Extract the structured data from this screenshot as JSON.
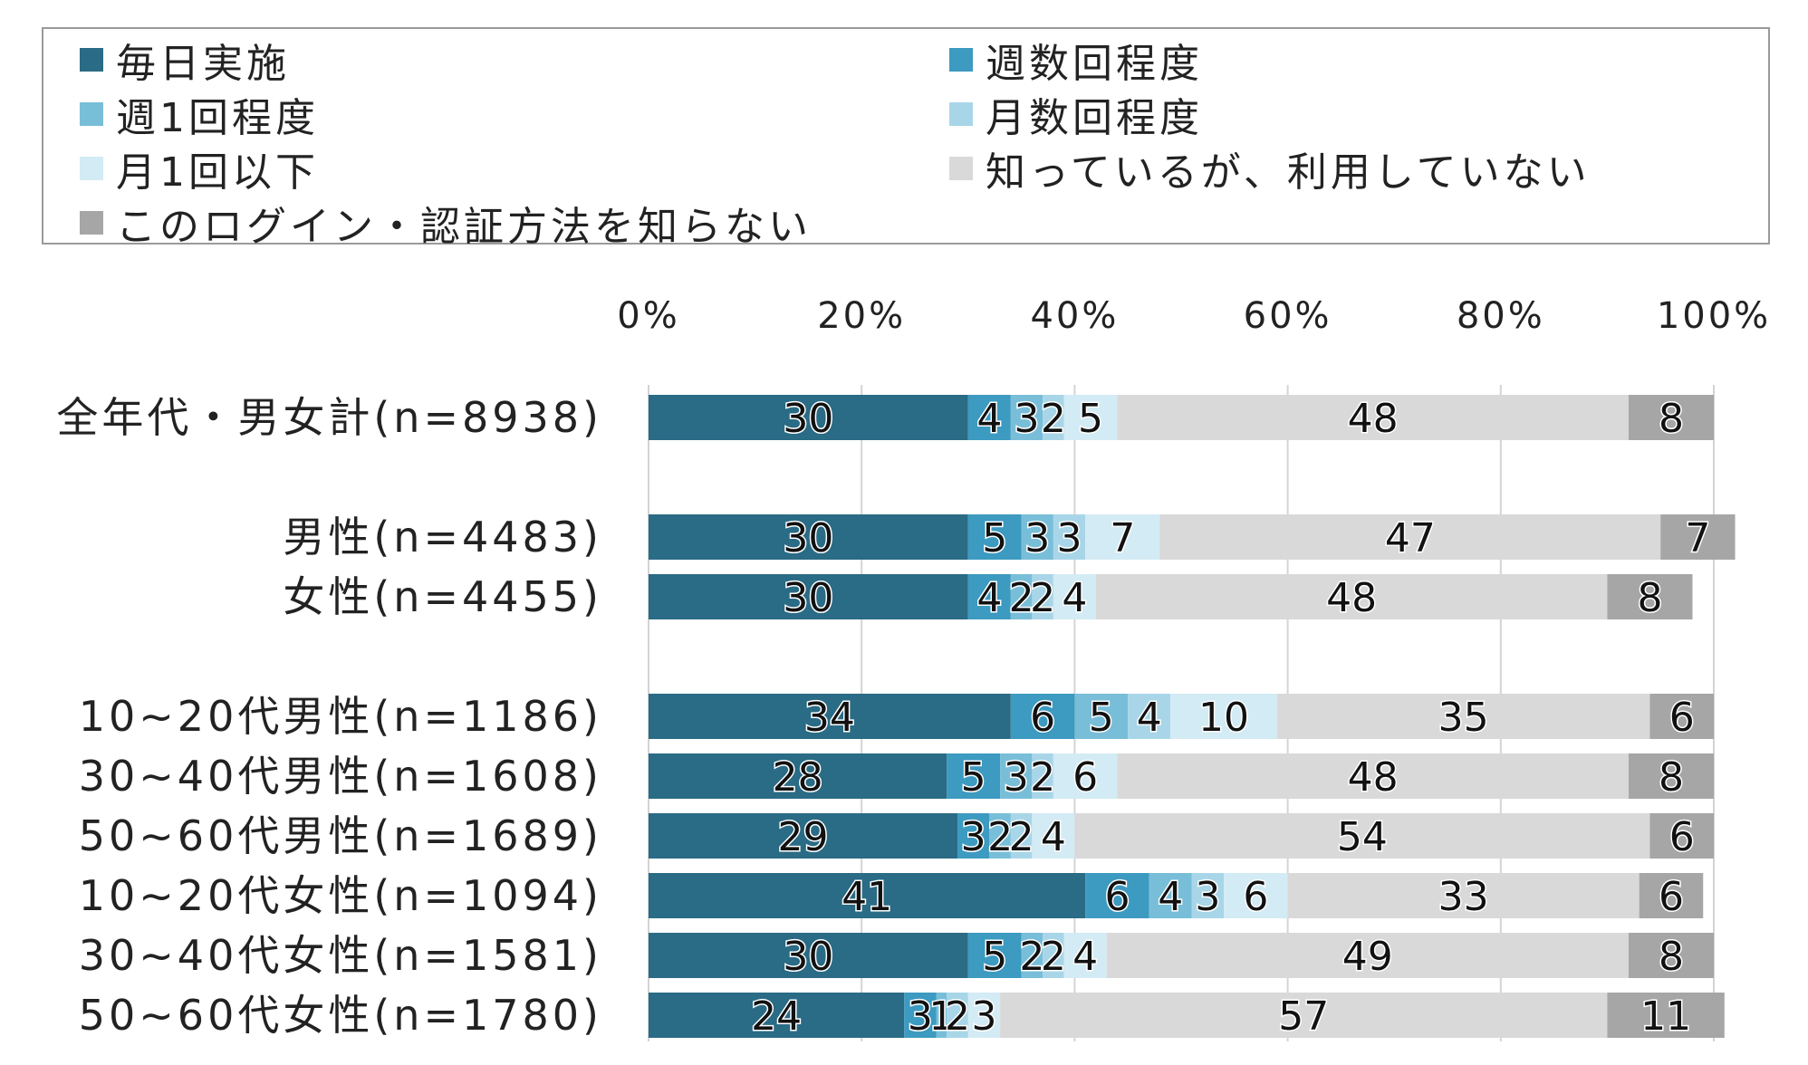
{
  "chart_data": {
    "type": "bar",
    "orientation": "horizontal-stacked-100",
    "xlim": [
      0,
      100
    ],
    "xticks": [
      "0%",
      "20%",
      "40%",
      "60%",
      "80%",
      "100%"
    ],
    "legend_position": "top",
    "categories": [
      "全年代・男女計(n=8938)",
      "男性(n=4483)",
      "女性(n=4455)",
      "10~20代男性(n=1186)",
      "30~40代男性(n=1608)",
      "50~60代男性(n=1689)",
      "10~20代女性(n=1094)",
      "30~40代女性(n=1581)",
      "50~60代女性(n=1780)"
    ],
    "series": [
      {
        "name": "毎日実施",
        "color": "#2a6b85",
        "values": [
          30,
          30,
          30,
          34,
          28,
          29,
          41,
          30,
          24
        ]
      },
      {
        "name": "週数回程度",
        "color": "#3d9ac0",
        "values": [
          4,
          5,
          4,
          6,
          5,
          3,
          6,
          5,
          3
        ]
      },
      {
        "name": "週1回程度",
        "color": "#78bed8",
        "values": [
          3,
          3,
          2,
          5,
          3,
          2,
          4,
          2,
          1
        ]
      },
      {
        "name": "月数回程度",
        "color": "#a8d6e8",
        "values": [
          2,
          3,
          2,
          4,
          2,
          2,
          3,
          2,
          2
        ]
      },
      {
        "name": "月1回以下",
        "color": "#d3ebf4",
        "values": [
          5,
          7,
          4,
          10,
          6,
          4,
          6,
          4,
          3
        ]
      },
      {
        "name": "知っているが、利用していない",
        "color": "#d9d9d9",
        "values": [
          48,
          47,
          48,
          35,
          48,
          54,
          33,
          49,
          57
        ]
      },
      {
        "name": "このログイン・認証方法を知らない",
        "color": "#a6a6a6",
        "values": [
          8,
          7,
          8,
          6,
          8,
          6,
          6,
          8,
          11
        ]
      }
    ]
  }
}
